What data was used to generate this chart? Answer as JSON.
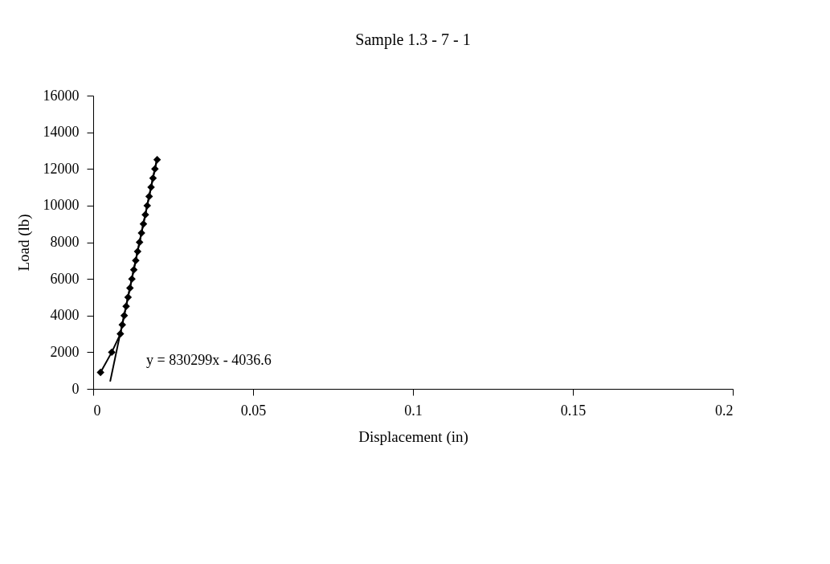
{
  "chart_data": {
    "type": "line",
    "title": "Sample 1.3 - 7 - 1",
    "xlabel": "Displacement (in)",
    "ylabel": "Load (lb)",
    "xlim": [
      0,
      0.2
    ],
    "xticks": [
      0,
      0.05,
      0.1,
      0.15,
      0.2
    ],
    "ylim": [
      0,
      16000
    ],
    "yticks": [
      0,
      2000,
      4000,
      6000,
      8000,
      10000,
      12000,
      14000,
      16000
    ],
    "grid": false,
    "marker": "diamond",
    "series": [
      {
        "color": "#000000",
        "x": [
          0.0023,
          0.0058,
          0.0085,
          0.0091,
          0.0097,
          0.0103,
          0.0109,
          0.0115,
          0.0121,
          0.0127,
          0.0133,
          0.0139,
          0.0145,
          0.0151,
          0.0157,
          0.0163,
          0.0169,
          0.0175,
          0.0181,
          0.0187,
          0.0193,
          0.02
        ],
        "values": [
          900,
          2000,
          3000,
          3500,
          4000,
          4500,
          5000,
          5500,
          6000,
          6500,
          7000,
          7500,
          8000,
          8500,
          9000,
          9500,
          10000,
          10500,
          11000,
          11500,
          12000,
          12500
        ]
      },
      {
        "type": "line",
        "color": "#000000",
        "marker": "none",
        "x": [
          0.0053,
          0.02
        ],
        "values": [
          400,
          12600
        ]
      }
    ],
    "annotations": [
      "y = 830299x - 4036.6"
    ]
  }
}
